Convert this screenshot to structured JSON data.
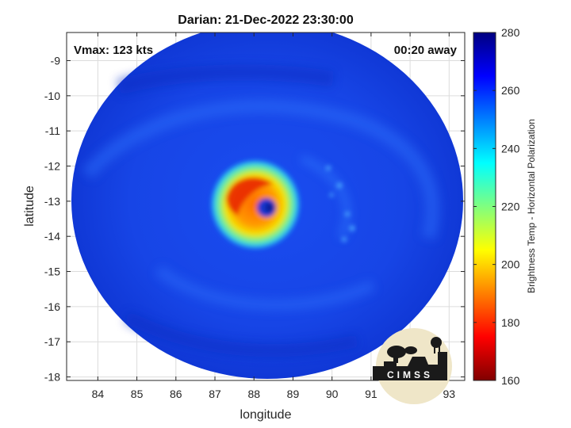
{
  "chart_data": {
    "type": "heatmap",
    "title": "Darian: 21-Dec-2022 23:30:00",
    "xlabel": "longitude",
    "ylabel": "latitude",
    "xlim": [
      83.2,
      93.4
    ],
    "ylim": [
      -18.1,
      -8.2
    ],
    "xticks": [
      84,
      85,
      86,
      87,
      88,
      89,
      90,
      91,
      92,
      93
    ],
    "yticks": [
      -9,
      -10,
      -11,
      -12,
      -13,
      -14,
      -15,
      -16,
      -17,
      -18
    ],
    "grid": true,
    "annotations": {
      "vmax": "Vmax: 123 kts",
      "away": "00:20 away"
    },
    "colorbar": {
      "label": "Brightness Temp - Horizontal Polarization",
      "range": [
        160,
        280
      ],
      "ticks": [
        280,
        260,
        240,
        220,
        200,
        180,
        160
      ],
      "colormap": "jet"
    },
    "storm_center": {
      "lon": 88.3,
      "lat": -13.1
    },
    "swath_center": {
      "lon": 88.3,
      "lat": -13.1
    }
  },
  "logo": {
    "text": "CIMSS"
  }
}
